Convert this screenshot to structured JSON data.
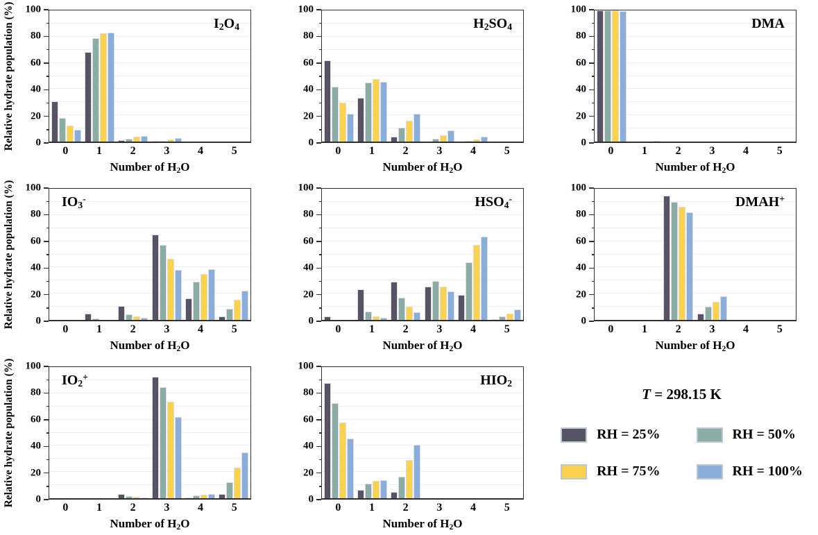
{
  "figure": {
    "ylabel": "Relative hydrate population (%)",
    "xlabel_text": "Number of H2O",
    "xlabel_segments": [
      {
        "t": "Number of H"
      },
      {
        "t": "2",
        "sub": true
      },
      {
        "t": "O"
      }
    ],
    "yticks": [
      0,
      20,
      40,
      60,
      80,
      100
    ],
    "ylim": [
      0,
      100
    ],
    "grid_step": 10,
    "grid_on": true,
    "categories": [
      "0",
      "1",
      "2",
      "3",
      "4",
      "5"
    ],
    "series": [
      {
        "name": "RH = 25%",
        "color": "#555364"
      },
      {
        "name": "RH = 50%",
        "color": "#8bada6"
      },
      {
        "name": "RH = 75%",
        "color": "#fcd14b"
      },
      {
        "name": "RH = 100%",
        "color": "#8aaed9"
      }
    ],
    "axis_color": "#2f2f2f",
    "grid_color": "#ececec",
    "bar_border_color": "#dcdcdc",
    "swatch_border_color": "#b9c7d6"
  },
  "legend": {
    "temp_t": "T",
    "temp_rest": " = 298.15 K",
    "items": [
      {
        "label": "RH = 25%"
      },
      {
        "label": "RH = 50%"
      },
      {
        "label": "RH = 75%"
      },
      {
        "label": "RH = 100%"
      }
    ]
  },
  "chart_data": [
    {
      "type": "bar",
      "id": "i2o4",
      "title": "I2O4",
      "title_pos": "right",
      "show_ylabel": true,
      "title_segments": [
        {
          "t": "I"
        },
        {
          "t": "2",
          "sub": true
        },
        {
          "t": "O"
        },
        {
          "t": "4",
          "sub": true
        }
      ],
      "categories": [
        "0",
        "1",
        "2",
        "3",
        "4",
        "5"
      ],
      "series": [
        {
          "name": "RH = 25%",
          "values": [
            30.5,
            68,
            1,
            0.5,
            0,
            0
          ]
        },
        {
          "name": "RH = 50%",
          "values": [
            18,
            79,
            2,
            0.5,
            0,
            0
          ]
        },
        {
          "name": "RH = 75%",
          "values": [
            12,
            82.5,
            3.5,
            1.5,
            0,
            0
          ]
        },
        {
          "name": "RH = 100%",
          "values": [
            9,
            83,
            4.5,
            2.5,
            0,
            0
          ]
        }
      ]
    },
    {
      "type": "bar",
      "id": "h2so4",
      "title": "H2SO4",
      "title_pos": "right",
      "show_ylabel": false,
      "title_segments": [
        {
          "t": "H"
        },
        {
          "t": "2",
          "sub": true
        },
        {
          "t": "SO"
        },
        {
          "t": "4",
          "sub": true
        }
      ],
      "categories": [
        "0",
        "1",
        "2",
        "3",
        "4",
        "5"
      ],
      "series": [
        {
          "name": "RH = 25%",
          "values": [
            62,
            33.5,
            3.5,
            0,
            0,
            0
          ]
        },
        {
          "name": "RH = 50%",
          "values": [
            42,
            45,
            10.5,
            2,
            0.5,
            0
          ]
        },
        {
          "name": "RH = 75%",
          "values": [
            29.5,
            47.5,
            16,
            5,
            1.5,
            0
          ]
        },
        {
          "name": "RH = 100%",
          "values": [
            21,
            45.5,
            21,
            8.5,
            3.5,
            0
          ]
        }
      ]
    },
    {
      "type": "bar",
      "id": "dma",
      "title": "DMA",
      "title_pos": "right",
      "show_ylabel": false,
      "title_segments": [
        {
          "t": "DMA"
        }
      ],
      "categories": [
        "0",
        "1",
        "2",
        "3",
        "4",
        "5"
      ],
      "series": [
        {
          "name": "RH = 25%",
          "values": [
            100,
            0,
            0,
            0,
            0,
            0
          ]
        },
        {
          "name": "RH = 50%",
          "values": [
            100,
            0,
            0,
            0,
            0,
            0
          ]
        },
        {
          "name": "RH = 75%",
          "values": [
            100,
            0,
            0,
            0,
            0,
            0
          ]
        },
        {
          "name": "RH = 100%",
          "values": [
            99.5,
            0.5,
            0,
            0,
            0,
            0
          ]
        }
      ]
    },
    {
      "type": "bar",
      "id": "io3",
      "title": "IO3-",
      "title_pos": "left",
      "show_ylabel": true,
      "title_segments": [
        {
          "t": "IO"
        },
        {
          "t": "3",
          "sub": true
        },
        {
          "t": "-",
          "sup": true
        }
      ],
      "categories": [
        "0",
        "1",
        "2",
        "3",
        "4",
        "5"
      ],
      "series": [
        {
          "name": "RH = 25%",
          "values": [
            0,
            5,
            10.5,
            65,
            16.5,
            2.5
          ]
        },
        {
          "name": "RH = 50%",
          "values": [
            0,
            1,
            4.5,
            57,
            29,
            8.5
          ]
        },
        {
          "name": "RH = 75%",
          "values": [
            0,
            0,
            2.5,
            46.5,
            35,
            15.5
          ]
        },
        {
          "name": "RH = 100%",
          "values": [
            0,
            0,
            1.5,
            38,
            38.5,
            22
          ]
        }
      ]
    },
    {
      "type": "bar",
      "id": "hso4",
      "title": "HSO4-",
      "title_pos": "right",
      "show_ylabel": false,
      "title_segments": [
        {
          "t": "HSO"
        },
        {
          "t": "4",
          "sub": true
        },
        {
          "t": "-",
          "sup": true
        }
      ],
      "categories": [
        "0",
        "1",
        "2",
        "3",
        "4",
        "5"
      ],
      "series": [
        {
          "name": "RH = 25%",
          "values": [
            2.5,
            23.5,
            29,
            25.5,
            19,
            0.5
          ]
        },
        {
          "name": "RH = 50%",
          "values": [
            0,
            6.5,
            17,
            29.5,
            44,
            2.5
          ]
        },
        {
          "name": "RH = 75%",
          "values": [
            0,
            2.5,
            10,
            25.5,
            57,
            5
          ]
        },
        {
          "name": "RH = 100%",
          "values": [
            0,
            1.5,
            6,
            21.5,
            63.5,
            8
          ]
        }
      ]
    },
    {
      "type": "bar",
      "id": "dmah",
      "title": "DMAH+",
      "title_pos": "right",
      "show_ylabel": false,
      "title_segments": [
        {
          "t": "DMAH"
        },
        {
          "t": "+",
          "sup": true
        }
      ],
      "categories": [
        "0",
        "1",
        "2",
        "3",
        "4",
        "5"
      ],
      "series": [
        {
          "name": "RH = 25%",
          "values": [
            0,
            0,
            94.5,
            5,
            0,
            0
          ]
        },
        {
          "name": "RH = 50%",
          "values": [
            0,
            0,
            90,
            10,
            0,
            0
          ]
        },
        {
          "name": "RH = 75%",
          "values": [
            0,
            0,
            86,
            14,
            0,
            0
          ]
        },
        {
          "name": "RH = 100%",
          "values": [
            0,
            0,
            82,
            18,
            0,
            0
          ]
        }
      ]
    },
    {
      "type": "bar",
      "id": "io2",
      "title": "IO2+",
      "title_pos": "left",
      "show_ylabel": true,
      "title_segments": [
        {
          "t": "IO"
        },
        {
          "t": "2",
          "sub": true
        },
        {
          "t": "+",
          "sup": true
        }
      ],
      "categories": [
        "0",
        "1",
        "2",
        "3",
        "4",
        "5"
      ],
      "series": [
        {
          "name": "RH = 25%",
          "values": [
            0,
            0,
            3,
            92.5,
            0.5,
            3
          ]
        },
        {
          "name": "RH = 50%",
          "values": [
            0,
            0,
            1.5,
            84.5,
            2,
            12
          ]
        },
        {
          "name": "RH = 75%",
          "values": [
            0,
            0,
            1,
            73.5,
            2.5,
            23.5
          ]
        },
        {
          "name": "RH = 100%",
          "values": [
            0,
            0,
            0.5,
            62,
            3,
            35
          ]
        }
      ]
    },
    {
      "type": "bar",
      "id": "hio2",
      "title": "HIO2",
      "title_pos": "right",
      "show_ylabel": false,
      "title_segments": [
        {
          "t": "HIO"
        },
        {
          "t": "2",
          "sub": true
        }
      ],
      "categories": [
        "0",
        "1",
        "2",
        "3",
        "4",
        "5"
      ],
      "series": [
        {
          "name": "RH = 25%",
          "values": [
            88,
            6.5,
            5,
            0,
            0,
            0
          ]
        },
        {
          "name": "RH = 50%",
          "values": [
            72.5,
            11,
            16.5,
            0,
            0,
            0
          ]
        },
        {
          "name": "RH = 75%",
          "values": [
            57.5,
            13.5,
            29,
            0,
            0,
            0
          ]
        },
        {
          "name": "RH = 100%",
          "values": [
            45.5,
            14,
            40.5,
            0,
            0,
            0
          ]
        }
      ]
    }
  ]
}
